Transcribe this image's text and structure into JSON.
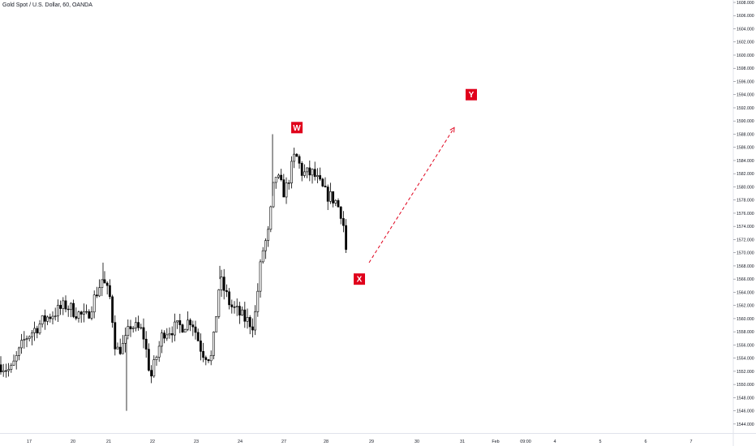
{
  "chart_data": {
    "type": "candlestick",
    "title": "Gold Spot / U.S. Dollar, 60, OANDA",
    "colors": {
      "up": "#ffffff",
      "down": "#000000",
      "wick": "#000000",
      "annotation_bg": "#e0001b",
      "annotation_text": "#ffffff",
      "arrow": "#e0001b",
      "axis_text": "#131722",
      "axis_line": "#e0e3eb"
    },
    "ylim": [
      1543,
      1608
    ],
    "y_ticks": [
      1544,
      1546,
      1548,
      1550,
      1552,
      1554,
      1556,
      1558,
      1560,
      1562,
      1564,
      1566,
      1568,
      1570,
      1572,
      1574,
      1576,
      1578,
      1580,
      1582,
      1584,
      1586,
      1588,
      1590,
      1592,
      1594,
      1596,
      1598,
      1600,
      1602,
      1604,
      1606,
      1608
    ],
    "y_tick_labels": [
      "1544.000",
      "1546.000",
      "1548.000",
      "1550.000",
      "1552.000",
      "1554.000",
      "1556.000",
      "1558.000",
      "1560.000",
      "1562.000",
      "1564.000",
      "1566.000",
      "1568.000",
      "1570.000",
      "1572.000",
      "1574.000",
      "1576.000",
      "1578.000",
      "1580.000",
      "1582.000",
      "1584.000",
      "1586.000",
      "1588.000",
      "1590.000",
      "1592.000",
      "1594.000",
      "1596.000",
      "1598.000",
      "1600.000",
      "1602.000",
      "1604.000",
      "1606.000",
      "1608.000"
    ],
    "x_tick_labels": [
      "17",
      "20",
      "21",
      "22",
      "23",
      "24",
      "27",
      "28",
      "29",
      "30",
      "31",
      "Feb",
      "09:00",
      "4",
      "5",
      "6",
      "7"
    ],
    "anchors": [
      {
        "t": 0,
        "price": 1553
      },
      {
        "t": 12,
        "price": 1552
      },
      {
        "t": 30,
        "price": 1557
      },
      {
        "t": 55,
        "price": 1560
      },
      {
        "t": 80,
        "price": 1562
      },
      {
        "t": 105,
        "price": 1560
      },
      {
        "t": 125,
        "price": 1566
      },
      {
        "t": 135,
        "price": 1563
      },
      {
        "t": 142,
        "price": 1555
      },
      {
        "t": 152,
        "price": 1556
      },
      {
        "t": 160,
        "price": 1559
      },
      {
        "t": 175,
        "price": 1558
      },
      {
        "t": 185,
        "price": 1551
      },
      {
        "t": 200,
        "price": 1558
      },
      {
        "t": 225,
        "price": 1559
      },
      {
        "t": 235,
        "price": 1560
      },
      {
        "t": 248,
        "price": 1555
      },
      {
        "t": 260,
        "price": 1554
      },
      {
        "t": 270,
        "price": 1566
      },
      {
        "t": 283,
        "price": 1562
      },
      {
        "t": 300,
        "price": 1560
      },
      {
        "t": 312,
        "price": 1559
      },
      {
        "t": 322,
        "price": 1570
      },
      {
        "t": 330,
        "price": 1573
      },
      {
        "t": 338,
        "price": 1582
      },
      {
        "t": 350,
        "price": 1579
      },
      {
        "t": 363,
        "price": 1585
      },
      {
        "t": 372,
        "price": 1582
      },
      {
        "t": 385,
        "price": 1582
      },
      {
        "t": 400,
        "price": 1579
      },
      {
        "t": 412,
        "price": 1578
      },
      {
        "t": 420,
        "price": 1576
      },
      {
        "t": 428,
        "price": 1570
      }
    ],
    "candle_step": 3.2,
    "last_price": 1570.5,
    "labels": [
      {
        "text": "W",
        "t": 366,
        "price": 1589
      },
      {
        "text": "X",
        "t": 443,
        "price": 1566
      },
      {
        "text": "Y",
        "t": 581,
        "price": 1594
      }
    ],
    "projection": {
      "from": {
        "t": 455,
        "price": 1568.5
      },
      "to": {
        "t": 560,
        "price": 1589
      }
    }
  }
}
